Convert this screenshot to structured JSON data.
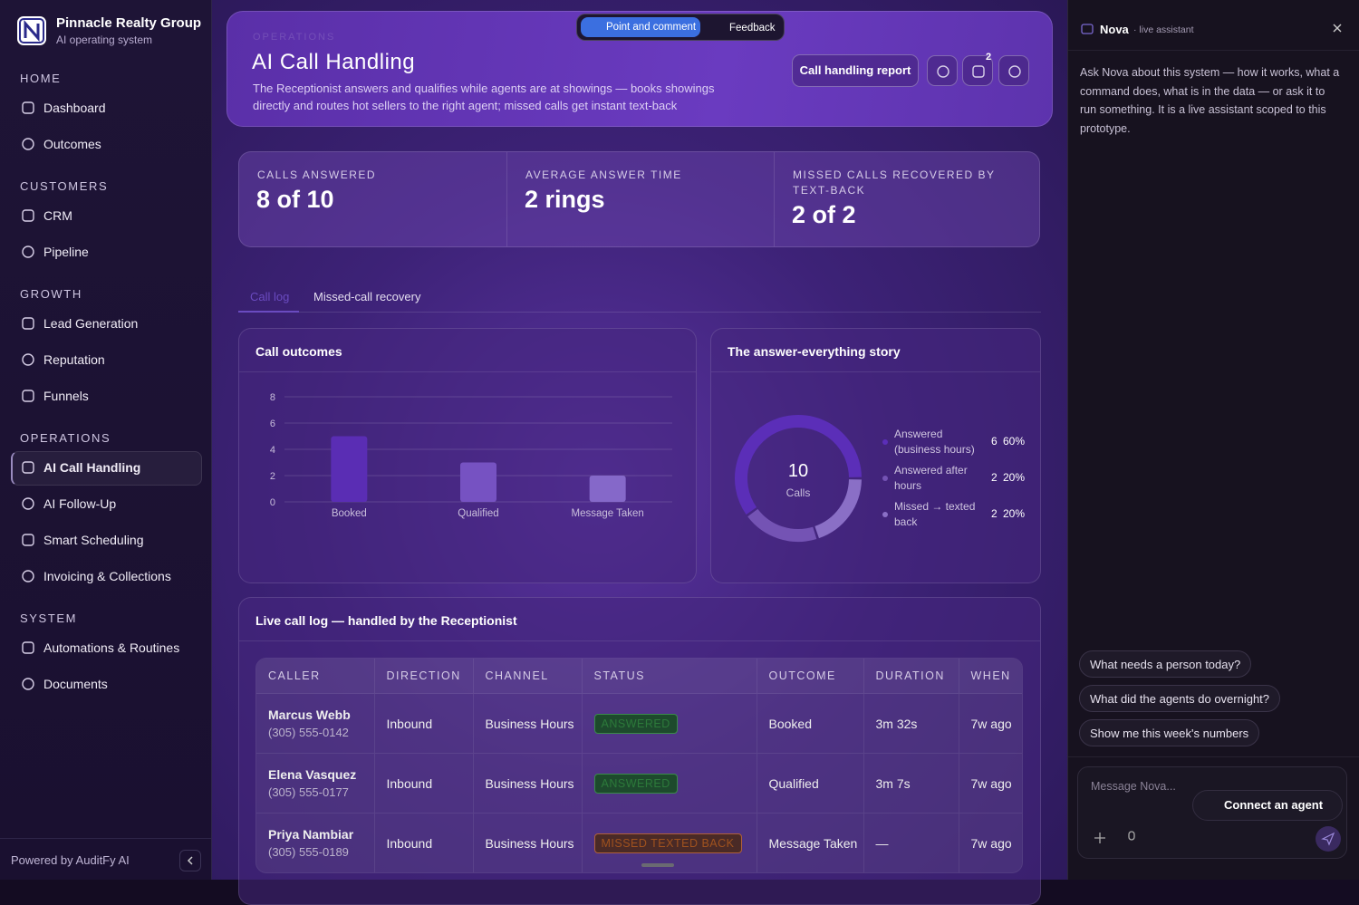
{
  "sidebar": {
    "brand": "Pinnacle Realty Group",
    "tagline": "AI operating system",
    "sections": [
      {
        "label": "HOME",
        "items": [
          "Dashboard",
          "Outcomes"
        ]
      },
      {
        "label": "CUSTOMERS",
        "items": [
          "CRM",
          "Pipeline"
        ]
      },
      {
        "label": "GROWTH",
        "items": [
          "Lead Generation",
          "Reputation",
          "Funnels"
        ]
      },
      {
        "label": "OPERATIONS",
        "items": [
          "AI Call Handling",
          "AI Follow-Up",
          "Smart Scheduling",
          "Invoicing & Collections"
        ]
      },
      {
        "label": "SYSTEM",
        "items": [
          "Automations & Routines",
          "Documents"
        ]
      }
    ],
    "footer": "Powered by AuditFy AI"
  },
  "toolbar": {
    "point": "Point and comment",
    "feedback": "Feedback"
  },
  "header": {
    "eyebrow": "OPERATIONS",
    "title": "AI Call Handling",
    "description": "The Receptionist answers and qualifies while agents are at showings — books showings directly and routes hot sellers to the right agent; missed calls get instant text-back",
    "report_button": "Call handling report",
    "notification_count": 2
  },
  "kpis": [
    {
      "label": "CALLS ANSWERED",
      "value": "8 of 10"
    },
    {
      "label": "AVERAGE ANSWER TIME",
      "value": "2 rings"
    },
    {
      "label": "MISSED CALLS RECOVERED BY TEXT-BACK",
      "value": "2 of 2"
    }
  ],
  "tabs": [
    "Call log",
    "Missed-call recovery"
  ],
  "chart_data": [
    {
      "type": "bar",
      "title": "Call outcomes",
      "categories": [
        "Booked",
        "Qualified",
        "Message Taken"
      ],
      "values": [
        5,
        3,
        2
      ],
      "colors": [
        "#5a2db4",
        "#7652c2",
        "#8568c9"
      ],
      "ylim": [
        0,
        8
      ],
      "yticks": [
        0,
        2,
        4,
        6,
        8
      ],
      "grid": true
    },
    {
      "type": "pie",
      "title": "The answer-everything story",
      "center_value": 10,
      "center_label": "Calls",
      "categories": [
        "Answered (business hours)",
        "Answered after hours",
        "Missed → texted back"
      ],
      "values": [
        60,
        20,
        20
      ],
      "value_labels": [
        "60%",
        "20%",
        "20%"
      ],
      "counts": [
        6,
        2,
        2
      ],
      "colors": [
        "#5b2eb8",
        "#7453b4",
        "#8a6fc6"
      ]
    }
  ],
  "call_log": {
    "title": "Live call log — handled by the Receptionist",
    "columns": [
      "CALLER",
      "DIRECTION",
      "CHANNEL",
      "STATUS",
      "OUTCOME",
      "DURATION",
      "WHEN"
    ],
    "rows": [
      [
        "Marcus Webb",
        "(305) 555-0142",
        "Inbound",
        "Business Hours",
        "ANSWERED",
        "Booked",
        "3m 32s",
        "7w ago"
      ],
      [
        "Elena Vasquez",
        "(305) 555-0177",
        "Inbound",
        "Business Hours",
        "ANSWERED",
        "Qualified",
        "3m 7s",
        "7w ago"
      ],
      [
        "Priya Nambiar",
        "(305) 555-0189",
        "Inbound",
        "Business Hours",
        "MISSED TEXTED BACK",
        "Message Taken",
        "—",
        "7w ago"
      ]
    ]
  },
  "assistant": {
    "name": "Nova",
    "subtitle": "· live assistant",
    "intro": "Ask Nova about this system — how it works, what a command does, what is in the data — or ask it to run something. It is a live assistant scoped to this prototype.",
    "suggestions": [
      "What needs a person today?",
      "What did the agents do overnight?",
      "Show me this week's numbers"
    ],
    "placeholder": "Message Nova...",
    "connect": "Connect an agent"
  }
}
